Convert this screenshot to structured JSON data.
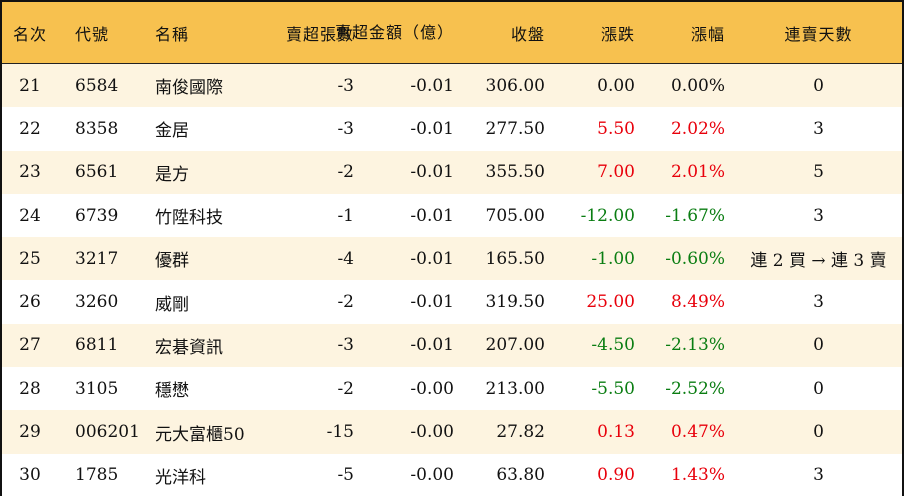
{
  "colors": {
    "header_bg": "#f7c14f",
    "row_alt_bg": "#fdf4e0",
    "up": "#e8000b",
    "down": "#0a7d12"
  },
  "headers": {
    "rank": "名次",
    "code": "代號",
    "name": "名稱",
    "sell_lots": "賣超張數",
    "sell_amount_1": "賣超金額",
    "sell_amount_2": "（億）",
    "close": "收盤",
    "change": "漲跌",
    "change_pct": "漲幅",
    "sell_days": "連賣天數"
  },
  "rows": [
    {
      "rank": "21",
      "code": "6584",
      "name": "南俊國際",
      "sell_lots": "-3",
      "sell_amount": "-0.01",
      "close": "306.00",
      "change": "0.00",
      "change_pct": "0.00%",
      "sell_days": "0",
      "trend": "flat"
    },
    {
      "rank": "22",
      "code": "8358",
      "name": "金居",
      "sell_lots": "-3",
      "sell_amount": "-0.01",
      "close": "277.50",
      "change": "5.50",
      "change_pct": "2.02%",
      "sell_days": "3",
      "trend": "up"
    },
    {
      "rank": "23",
      "code": "6561",
      "name": "是方",
      "sell_lots": "-2",
      "sell_amount": "-0.01",
      "close": "355.50",
      "change": "7.00",
      "change_pct": "2.01%",
      "sell_days": "5",
      "trend": "up"
    },
    {
      "rank": "24",
      "code": "6739",
      "name": "竹陞科技",
      "sell_lots": "-1",
      "sell_amount": "-0.01",
      "close": "705.00",
      "change": "-12.00",
      "change_pct": "-1.67%",
      "sell_days": "3",
      "trend": "down"
    },
    {
      "rank": "25",
      "code": "3217",
      "name": "優群",
      "sell_lots": "-4",
      "sell_amount": "-0.01",
      "close": "165.50",
      "change": "-1.00",
      "change_pct": "-0.60%",
      "sell_days": "連 2 買 → 連 3 賣",
      "trend": "down"
    },
    {
      "rank": "26",
      "code": "3260",
      "name": "威剛",
      "sell_lots": "-2",
      "sell_amount": "-0.01",
      "close": "319.50",
      "change": "25.00",
      "change_pct": "8.49%",
      "sell_days": "3",
      "trend": "up"
    },
    {
      "rank": "27",
      "code": "6811",
      "name": "宏碁資訊",
      "sell_lots": "-3",
      "sell_amount": "-0.01",
      "close": "207.00",
      "change": "-4.50",
      "change_pct": "-2.13%",
      "sell_days": "0",
      "trend": "down"
    },
    {
      "rank": "28",
      "code": "3105",
      "name": "穩懋",
      "sell_lots": "-2",
      "sell_amount": "-0.00",
      "close": "213.00",
      "change": "-5.50",
      "change_pct": "-2.52%",
      "sell_days": "0",
      "trend": "down"
    },
    {
      "rank": "29",
      "code": "006201",
      "name": "元大富櫃50",
      "sell_lots": "-15",
      "sell_amount": "-0.00",
      "close": "27.82",
      "change": "0.13",
      "change_pct": "0.47%",
      "sell_days": "0",
      "trend": "up"
    },
    {
      "rank": "30",
      "code": "1785",
      "name": "光洋科",
      "sell_lots": "-5",
      "sell_amount": "-0.00",
      "close": "63.80",
      "change": "0.90",
      "change_pct": "1.43%",
      "sell_days": "3",
      "trend": "up"
    }
  ]
}
